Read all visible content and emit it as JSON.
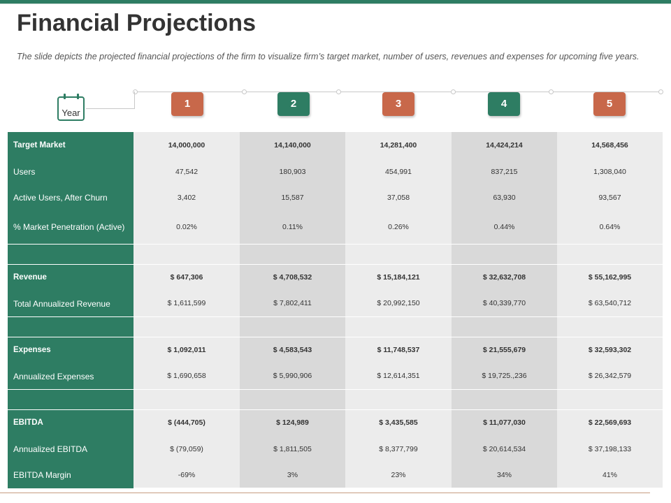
{
  "header": {
    "title": "Financial Projections",
    "subtitle": "The slide depicts the projected financial projections of the firm to visualize firm’s target market, number of users, revenues and expenses for upcoming five years."
  },
  "timeline": {
    "year_label": "Year",
    "badges": [
      {
        "label": "1",
        "color": "#c8684a"
      },
      {
        "label": "2",
        "color": "#2e7d63"
      },
      {
        "label": "3",
        "color": "#c8684a"
      },
      {
        "label": "4",
        "color": "#2e7d63"
      },
      {
        "label": "5",
        "color": "#c8684a"
      }
    ]
  },
  "colors": {
    "green": "#2e7d63",
    "orange": "#c8684a",
    "light_cell": "#ececec",
    "dark_cell": "#d9d9d9"
  },
  "table": {
    "rows": [
      {
        "label": "Target Market",
        "bold": true,
        "values": [
          "14,000,000",
          "14,140,000",
          "14,281,400",
          "14,424,214",
          "14,568,456"
        ]
      },
      {
        "label": "Users",
        "bold": false,
        "values": [
          "47,542",
          "180,903",
          "454,991",
          "837,215",
          "1,308,040"
        ]
      },
      {
        "label": "Active Users, After Churn",
        "bold": false,
        "values": [
          "3,402",
          "15,587",
          "37,058",
          "63,930",
          "93,567"
        ]
      },
      {
        "label": "% Market Penetration (Active)",
        "bold": false,
        "values": [
          "0.02%",
          "0.11%",
          "0.26%",
          "0.44%",
          "0.64%"
        ]
      },
      {
        "label": "",
        "bold": false,
        "values": [
          "",
          "",
          "",
          "",
          ""
        ]
      },
      {
        "label": "Revenue",
        "bold": true,
        "values": [
          "$ 647,306",
          "$ 4,708,532",
          "$ 15,184,121",
          "$ 32,632,708",
          "$ 55,162,995"
        ]
      },
      {
        "label": "Total Annualized Revenue",
        "bold": false,
        "values": [
          "$ 1,611,599",
          "$ 7,802,411",
          "$ 20,992,150",
          "$ 40,339,770",
          "$ 63,540,712"
        ]
      },
      {
        "label": "",
        "bold": false,
        "values": [
          "",
          "",
          "",
          "",
          ""
        ]
      },
      {
        "label": "Expenses",
        "bold": true,
        "values": [
          "$ 1,092,011",
          "$ 4,583,543",
          "$ 11,748,537",
          "$ 21,555,679",
          "$ 32,593,302"
        ]
      },
      {
        "label": "Annualized Expenses",
        "bold": false,
        "values": [
          "$ 1,690,658",
          "$ 5,990,906",
          "$ 12,614,351",
          "$ 19,725.,236",
          "$ 26,342,579"
        ]
      },
      {
        "label": "",
        "bold": false,
        "values": [
          "",
          "",
          "",
          "",
          ""
        ]
      },
      {
        "label": "EBITDA",
        "bold": true,
        "values": [
          "$ (444,705)",
          "$ 124,989",
          "$ 3,435,585",
          "$ 11,077,030",
          "$ 22,569,693"
        ]
      },
      {
        "label": "Annualized EBITDA",
        "bold": false,
        "values": [
          "$ (79,059)",
          "$ 1,811,505",
          "$ 8,377,799",
          "$ 20,614,534",
          "$ 37,198,133"
        ]
      },
      {
        "label": "EBITDA Margin",
        "bold": false,
        "values": [
          "-69%",
          "3%",
          "23%",
          "34%",
          "41%"
        ]
      }
    ]
  }
}
